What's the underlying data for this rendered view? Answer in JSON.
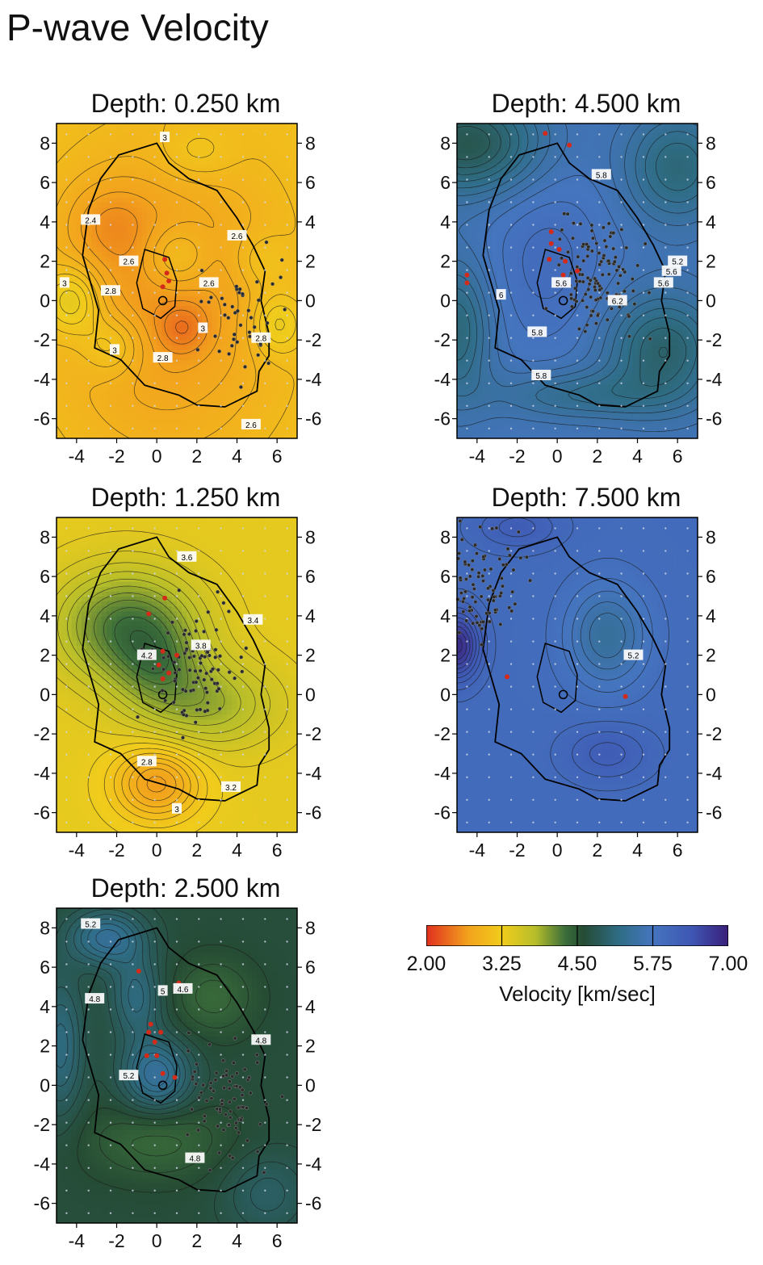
{
  "page_title": "P-wave Velocity",
  "colors": {
    "contour": "#1a1a1a",
    "coastline": "#000000",
    "red_event": "#d42a1a",
    "station_dot": "#cfd8e8",
    "event_dot": "#2a2a2a"
  },
  "colorbar": {
    "stops": [
      {
        "v": 2.0,
        "color": "#e0301e"
      },
      {
        "v": 2.7,
        "color": "#f2a31d"
      },
      {
        "v": 3.25,
        "color": "#f1cc1c"
      },
      {
        "v": 3.8,
        "color": "#b7be2a"
      },
      {
        "v": 4.3,
        "color": "#3b6e3a"
      },
      {
        "v": 4.6,
        "color": "#254b34"
      },
      {
        "v": 5.2,
        "color": "#2f6d86"
      },
      {
        "v": 5.75,
        "color": "#4575bf"
      },
      {
        "v": 6.4,
        "color": "#3e56b3"
      },
      {
        "v": 7.0,
        "color": "#3a1f7a"
      }
    ],
    "ticks": [
      "2.00",
      "3.25",
      "4.50",
      "5.75",
      "7.00"
    ],
    "label": "Velocity [km/sec]"
  },
  "chart_data": [
    {
      "type": "heatmap",
      "title": "Depth: 0.250 km",
      "x_ticks": [
        "-4",
        "-2",
        "0",
        "2",
        "4",
        "6"
      ],
      "y_ticks": [
        "8",
        "6",
        "4",
        "2",
        "0",
        "-2",
        "-4",
        "-6"
      ],
      "xlim": [
        -5,
        7
      ],
      "ylim": [
        -7,
        9
      ],
      "base_velocity": 3.1,
      "anomalies": [
        {
          "x": 0.5,
          "y": 0.0,
          "sx": 4.0,
          "sy": 5.5,
          "dv": -0.5
        },
        {
          "x": -2.5,
          "y": 4.0,
          "sx": 1.6,
          "sy": 1.6,
          "dv": -0.25
        },
        {
          "x": 1.3,
          "y": -1.4,
          "sx": 0.8,
          "sy": 0.8,
          "dv": -0.25
        },
        {
          "x": 1.0,
          "y": 2.2,
          "sx": 1.1,
          "sy": 1.1,
          "dv": 0.35
        },
        {
          "x": -4.2,
          "y": 0.0,
          "sx": 1.0,
          "sy": 1.2,
          "dv": 0.5
        },
        {
          "x": -2.2,
          "y": -2.3,
          "sx": 1.1,
          "sy": 1.1,
          "dv": 0.35
        },
        {
          "x": 6.0,
          "y": -1.2,
          "sx": 0.9,
          "sy": 1.1,
          "dv": 0.4
        },
        {
          "x": 2.0,
          "y": 7.5,
          "sx": 1.3,
          "sy": 1.0,
          "dv": 0.2
        },
        {
          "x": 5.2,
          "y": 2.0,
          "sx": 1.0,
          "sy": 1.0,
          "dv": 0.2
        }
      ],
      "contour_labels": [
        {
          "text": "3",
          "x": 0.4,
          "y": 8.3
        },
        {
          "text": "2.4",
          "x": -3.3,
          "y": 4.1
        },
        {
          "text": "2.6",
          "x": 4.0,
          "y": 3.3
        },
        {
          "text": "2.6",
          "x": -1.4,
          "y": 2.0
        },
        {
          "text": "2.8",
          "x": -2.3,
          "y": 0.5
        },
        {
          "text": "3",
          "x": -4.6,
          "y": 0.9
        },
        {
          "text": "2.6",
          "x": 2.6,
          "y": 0.9
        },
        {
          "text": "3",
          "x": 2.3,
          "y": -1.4
        },
        {
          "text": "3",
          "x": -2.1,
          "y": -2.5
        },
        {
          "text": "2.8",
          "x": 0.3,
          "y": -2.9
        },
        {
          "text": "2.8",
          "x": 5.2,
          "y": -1.9
        },
        {
          "text": "2.6",
          "x": 4.7,
          "y": -6.3
        }
      ],
      "red_events": [
        [
          0.4,
          2.1
        ],
        [
          0.5,
          1.4
        ],
        [
          0.6,
          1.0
        ],
        [
          0.3,
          0.7
        ]
      ],
      "event_count": 45,
      "event_center": [
        4.6,
        -0.8
      ]
    },
    {
      "type": "heatmap",
      "title": "Depth: 4.500 km",
      "x_ticks": [
        "-4",
        "-2",
        "0",
        "2",
        "4",
        "6"
      ],
      "y_ticks": [
        "8",
        "6",
        "4",
        "2",
        "0",
        "-2",
        "-4",
        "-6"
      ],
      "xlim": [
        -5,
        7
      ],
      "ylim": [
        -7,
        9
      ],
      "base_velocity": 5.7,
      "anomalies": [
        {
          "x": -4.5,
          "y": 8.0,
          "sx": 2.5,
          "sy": 1.8,
          "dv": -0.9
        },
        {
          "x": 6.0,
          "y": 6.8,
          "sx": 1.8,
          "sy": 2.0,
          "dv": -0.6
        },
        {
          "x": 5.3,
          "y": -2.5,
          "sx": 2.0,
          "sy": 2.0,
          "dv": -0.7
        },
        {
          "x": -5.0,
          "y": -1.5,
          "sx": 1.2,
          "sy": 2.5,
          "dv": -0.6
        },
        {
          "x": 1.0,
          "y": -4.8,
          "sx": 3.0,
          "sy": 0.9,
          "dv": -0.4
        },
        {
          "x": -0.5,
          "y": 2.0,
          "sx": 2.0,
          "sy": 3.0,
          "dv": 0.25
        }
      ],
      "contour_labels": [
        {
          "text": "5.8",
          "x": 2.2,
          "y": 6.4
        },
        {
          "text": "5.2",
          "x": 6.0,
          "y": 2.0
        },
        {
          "text": "5.6",
          "x": 5.7,
          "y": 1.5
        },
        {
          "text": "5.6",
          "x": 5.3,
          "y": 0.9
        },
        {
          "text": "6",
          "x": -2.8,
          "y": 0.3
        },
        {
          "text": "5.6",
          "x": 0.2,
          "y": 0.9
        },
        {
          "text": "6.2",
          "x": 3.0,
          "y": 0.0
        },
        {
          "text": "5.8",
          "x": -1.0,
          "y": -1.6
        },
        {
          "text": "5.8",
          "x": -0.8,
          "y": -3.8
        }
      ],
      "red_events": [
        [
          -0.6,
          8.5
        ],
        [
          0.6,
          7.9
        ],
        [
          -0.3,
          3.5
        ],
        [
          -0.3,
          2.9
        ],
        [
          0.1,
          2.6
        ],
        [
          0.4,
          2.0
        ],
        [
          -0.4,
          2.1
        ],
        [
          1.0,
          1.5
        ],
        [
          0.3,
          1.3
        ],
        [
          -4.5,
          1.3
        ],
        [
          -4.5,
          0.9
        ]
      ],
      "event_count": 120,
      "event_center": [
        2.0,
        1.0
      ]
    },
    {
      "type": "heatmap",
      "title": "Depth: 1.250 km",
      "x_ticks": [
        "-4",
        "-2",
        "0",
        "2",
        "4",
        "6"
      ],
      "y_ticks": [
        "8",
        "6",
        "4",
        "2",
        "0",
        "-2",
        "-4",
        "-6"
      ],
      "xlim": [
        -5,
        7
      ],
      "ylim": [
        -7,
        9
      ],
      "base_velocity": 3.35,
      "anomalies": [
        {
          "x": -1.5,
          "y": 3.5,
          "sx": 2.5,
          "sy": 2.0,
          "dv": 0.9
        },
        {
          "x": 2.5,
          "y": -0.5,
          "sx": 2.5,
          "sy": 1.6,
          "dv": 0.55
        },
        {
          "x": 0.0,
          "y": 1.5,
          "sx": 1.5,
          "sy": 1.5,
          "dv": 0.4
        },
        {
          "x": 0.0,
          "y": -4.5,
          "sx": 1.5,
          "sy": 1.3,
          "dv": -0.7
        }
      ],
      "contour_labels": [
        {
          "text": "3.6",
          "x": 1.5,
          "y": 7.0
        },
        {
          "text": "3.4",
          "x": 4.8,
          "y": 3.8
        },
        {
          "text": "3.8",
          "x": 2.2,
          "y": 2.5
        },
        {
          "text": "4.2",
          "x": -0.5,
          "y": 2.0
        },
        {
          "text": "2.8",
          "x": -0.5,
          "y": -3.4
        },
        {
          "text": "3.2",
          "x": 3.7,
          "y": -4.7
        },
        {
          "text": "3",
          "x": 1.0,
          "y": -5.8
        }
      ],
      "red_events": [
        [
          -0.4,
          4.1
        ],
        [
          0.4,
          4.9
        ],
        [
          0.3,
          2.2
        ],
        [
          -0.3,
          1.9
        ],
        [
          0.1,
          1.5
        ],
        [
          0.6,
          1.1
        ],
        [
          1.0,
          2.0
        ],
        [
          0.3,
          0.8
        ]
      ],
      "event_count": 90,
      "event_center": [
        1.8,
        1.6
      ]
    },
    {
      "type": "heatmap",
      "title": "Depth: 7.500 km",
      "x_ticks": [
        "-4",
        "-2",
        "0",
        "2",
        "4",
        "6"
      ],
      "y_ticks": [
        "8",
        "6",
        "4",
        "2",
        "0",
        "-2",
        "-4",
        "-6"
      ],
      "xlim": [
        -5,
        7
      ],
      "ylim": [
        -7,
        9
      ],
      "base_velocity": 5.95,
      "anomalies": [
        {
          "x": 2.5,
          "y": 3.0,
          "sx": 1.4,
          "sy": 1.8,
          "dv": -0.55
        },
        {
          "x": -5.0,
          "y": 2.5,
          "sx": 0.8,
          "sy": 1.2,
          "dv": 0.9
        },
        {
          "x": 2.5,
          "y": -3.0,
          "sx": 1.5,
          "sy": 1.0,
          "dv": 0.3
        },
        {
          "x": -2.0,
          "y": 8.5,
          "sx": 1.5,
          "sy": 0.8,
          "dv": 0.3
        }
      ],
      "contour_labels": [
        {
          "text": "5.2",
          "x": 3.8,
          "y": 2.0
        }
      ],
      "red_events": [
        [
          -2.5,
          0.9
        ],
        [
          3.4,
          -0.1
        ]
      ],
      "event_count": 110,
      "event_center": [
        -4.3,
        5.8
      ]
    },
    {
      "type": "heatmap",
      "title": "Depth: 2.500 km",
      "x_ticks": [
        "-4",
        "-2",
        "0",
        "2",
        "4",
        "6"
      ],
      "y_ticks": [
        "8",
        "6",
        "4",
        "2",
        "0",
        "-2",
        "-4",
        "-6"
      ],
      "xlim": [
        -5,
        7
      ],
      "ylim": [
        -7,
        9
      ],
      "base_velocity": 4.65,
      "anomalies": [
        {
          "x": -2.5,
          "y": 7.5,
          "sx": 1.3,
          "sy": 1.0,
          "dv": 0.7
        },
        {
          "x": 0.0,
          "y": 0.5,
          "sx": 1.2,
          "sy": 1.3,
          "dv": 0.75
        },
        {
          "x": -1.0,
          "y": 4.5,
          "sx": 0.9,
          "sy": 1.5,
          "dv": 0.5
        },
        {
          "x": -4.8,
          "y": 2.0,
          "sx": 0.8,
          "sy": 2.5,
          "dv": 0.5
        },
        {
          "x": 5.5,
          "y": -5.5,
          "sx": 1.5,
          "sy": 1.5,
          "dv": 0.3
        },
        {
          "x": 2.8,
          "y": 4.5,
          "sx": 1.5,
          "sy": 1.4,
          "dv": -0.3
        },
        {
          "x": 0.0,
          "y": -2.8,
          "sx": 2.5,
          "sy": 1.4,
          "dv": -0.3
        }
      ],
      "contour_labels": [
        {
          "text": "5.2",
          "x": -3.3,
          "y": 8.2
        },
        {
          "text": "4.8",
          "x": -3.1,
          "y": 4.4
        },
        {
          "text": "5",
          "x": 0.3,
          "y": 4.8
        },
        {
          "text": "4.6",
          "x": 1.3,
          "y": 4.9
        },
        {
          "text": "4.8",
          "x": 5.2,
          "y": 2.3
        },
        {
          "text": "5.2",
          "x": -1.4,
          "y": 0.5
        },
        {
          "text": "4.8",
          "x": 1.9,
          "y": -3.7
        }
      ],
      "red_events": [
        [
          -0.9,
          5.8
        ],
        [
          1.1,
          5.2
        ],
        [
          -0.3,
          3.1
        ],
        [
          -0.4,
          2.7
        ],
        [
          0.2,
          2.7
        ],
        [
          -0.1,
          2.2
        ],
        [
          -0.5,
          1.5
        ],
        [
          0.0,
          1.5
        ],
        [
          0.3,
          0.6
        ],
        [
          0.9,
          0.4
        ]
      ],
      "event_count": 80,
      "event_center": [
        3.6,
        -0.8
      ]
    }
  ]
}
